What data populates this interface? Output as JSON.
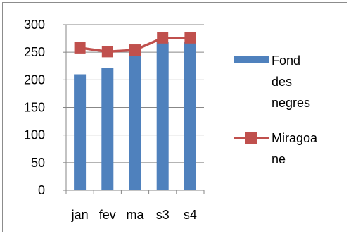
{
  "chart_data": {
    "type": "bar",
    "categories": [
      "jan",
      "fev",
      "ma",
      "s3",
      "s4"
    ],
    "ylim": [
      0,
      300
    ],
    "yticks": [
      0,
      50,
      100,
      150,
      200,
      250,
      300
    ],
    "grid": "horizontal",
    "legend_position": "right",
    "series": [
      {
        "name": "Fond des negres",
        "type": "bar",
        "color": "#4f81bd",
        "values": [
          210,
          222,
          246,
          268,
          268
        ]
      },
      {
        "name": "Miragoane",
        "type": "line",
        "marker": "square",
        "color": "#c0504d",
        "values": [
          258,
          251,
          254,
          276,
          276
        ]
      }
    ]
  },
  "legend": {
    "items": [
      {
        "lines": [
          "Fond",
          "des",
          "negres"
        ]
      },
      {
        "lines": [
          "Miragoa",
          "ne"
        ]
      }
    ]
  }
}
